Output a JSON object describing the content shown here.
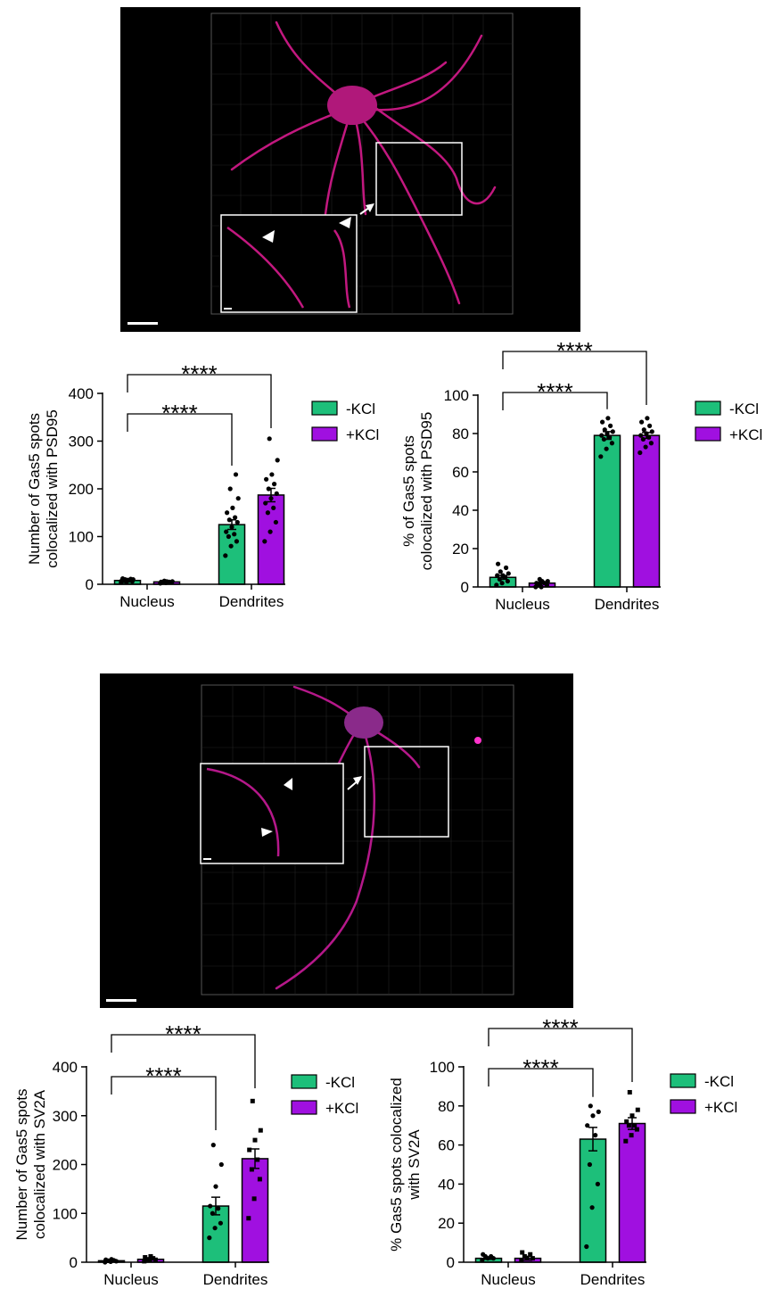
{
  "chart_data": [
    {
      "type": "bar",
      "ylabel": [
        "Number of Gas5 spots",
        "colocalized with PSD95"
      ],
      "categories": [
        "Nucleus",
        "Dendrites"
      ],
      "series": [
        {
          "name": "-KCl",
          "color": "#1dbf7a",
          "marker": "circle",
          "values": [
            8,
            125
          ],
          "errors": [
            1,
            10
          ],
          "points": [
            [
              4,
              5,
              6,
              7,
              8,
              8,
              9,
              10,
              10,
              11,
              12
            ],
            [
              60,
              80,
              90,
              100,
              105,
              110,
              120,
              130,
              135,
              140,
              150,
              160,
              180,
              200,
              230
            ]
          ]
        },
        {
          "name": "+KCl",
          "color": "#a010e0",
          "marker": "circle",
          "values": [
            5,
            187
          ],
          "errors": [
            1,
            14
          ],
          "points": [
            [
              2,
              3,
              4,
              4,
              5,
              5,
              6,
              6,
              7
            ],
            [
              90,
              110,
              130,
              150,
              160,
              170,
              180,
              190,
              200,
              210,
              220,
              230,
              260,
              305
            ]
          ]
        }
      ],
      "ylim": [
        0,
        400
      ],
      "yticks": [
        0,
        100,
        200,
        300,
        400
      ],
      "significance": [
        "****",
        "****"
      ]
    },
    {
      "type": "bar",
      "ylabel": [
        "% of Gas5 spots",
        "colocalized with PSD95"
      ],
      "categories": [
        "Nucleus",
        "Dendrites"
      ],
      "series": [
        {
          "name": "-KCl",
          "color": "#1dbf7a",
          "marker": "circle",
          "values": [
            5,
            79
          ],
          "errors": [
            1,
            2
          ],
          "points": [
            [
              1,
              2,
              3,
              4,
              5,
              6,
              6,
              7,
              8,
              10,
              12
            ],
            [
              68,
              72,
              75,
              77,
              78,
              79,
              80,
              81,
              82,
              84,
              86,
              88
            ]
          ]
        },
        {
          "name": "+KCl",
          "color": "#a010e0",
          "marker": "circle",
          "values": [
            2,
            79
          ],
          "errors": [
            0.5,
            1.5
          ],
          "points": [
            [
              0,
              0,
              1,
              1,
              2,
              2,
              3,
              3,
              4
            ],
            [
              70,
              73,
              75,
              77,
              78,
              79,
              80,
              81,
              82,
              84,
              86,
              88
            ]
          ]
        }
      ],
      "ylim": [
        0,
        100
      ],
      "yticks": [
        0,
        20,
        40,
        60,
        80,
        100
      ],
      "significance": [
        "****",
        "****"
      ]
    },
    {
      "type": "bar",
      "ylabel": [
        "Number of Gas5 spots",
        "colocalized with SV2A"
      ],
      "categories": [
        "Nucleus",
        "Dendrites"
      ],
      "series": [
        {
          "name": "-KCl",
          "color": "#1dbf7a",
          "marker": "circle",
          "values": [
            3,
            115
          ],
          "errors": [
            1,
            18
          ],
          "points": [
            [
              0,
              1,
              2,
              3,
              4,
              5,
              6
            ],
            [
              50,
              70,
              80,
              100,
              110,
              115,
              155,
              200,
              240
            ]
          ]
        },
        {
          "name": "+KCl",
          "color": "#a010e0",
          "marker": "square",
          "values": [
            6,
            212
          ],
          "errors": [
            1,
            20
          ],
          "points": [
            [
              2,
              4,
              5,
              6,
              8,
              10,
              12
            ],
            [
              90,
              130,
              170,
              190,
              210,
              230,
              250,
              270,
              330
            ]
          ]
        }
      ],
      "ylim": [
        0,
        400
      ],
      "yticks": [
        0,
        100,
        200,
        300,
        400
      ],
      "significance": [
        "****",
        "****"
      ]
    },
    {
      "type": "bar",
      "ylabel": [
        "% Gas5 spots colocalized",
        "with SV2A"
      ],
      "categories": [
        "Nucleus",
        "Dendrites"
      ],
      "series": [
        {
          "name": "-KCl",
          "color": "#1dbf7a",
          "marker": "circle",
          "values": [
            2,
            63
          ],
          "errors": [
            0.5,
            6
          ],
          "points": [
            [
              1,
              2,
              2,
              3,
              3,
              4
            ],
            [
              8,
              28,
              40,
              50,
              65,
              70,
              75,
              77,
              80
            ]
          ]
        },
        {
          "name": "+KCl",
          "color": "#a010e0",
          "marker": "square",
          "values": [
            2,
            71
          ],
          "errors": [
            1,
            3
          ],
          "points": [
            [
              1,
              2,
              2,
              3,
              4,
              5
            ],
            [
              62,
              65,
              68,
              70,
              70,
              72,
              75,
              78,
              87
            ]
          ]
        }
      ],
      "ylim": [
        0,
        100
      ],
      "yticks": [
        0,
        20,
        40,
        60,
        80,
        100
      ],
      "significance": [
        "****",
        "****"
      ]
    }
  ]
}
